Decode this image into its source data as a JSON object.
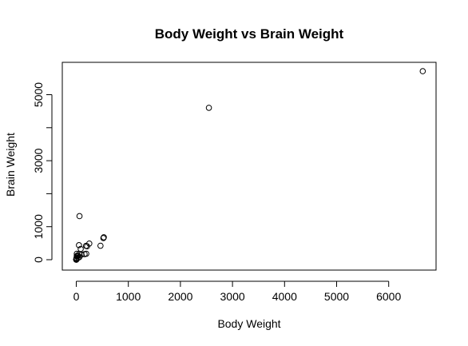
{
  "chart_data": {
    "type": "scatter",
    "title": "Body Weight vs Brain Weight",
    "xlabel": "Body Weight",
    "ylabel": "Brain Weight",
    "xlim": [
      0,
      6700
    ],
    "ylim": [
      0,
      5700
    ],
    "x_ticks": [
      0,
      1000,
      2000,
      3000,
      4000,
      5000,
      6000
    ],
    "x_tick_labels": [
      "0",
      "1000",
      "2000",
      "3000",
      "4000",
      "5000",
      "6000"
    ],
    "y_ticks": [
      0,
      1000,
      3000,
      5000
    ],
    "y_tick_labels": [
      "0",
      "1000",
      "3000",
      "5000"
    ],
    "grid": false,
    "marker": "open-circle",
    "points": [
      {
        "x": 6654,
        "y": 5712
      },
      {
        "x": 2547,
        "y": 4603
      },
      {
        "x": 62,
        "y": 1320
      },
      {
        "x": 521,
        "y": 655
      },
      {
        "x": 529,
        "y": 680
      },
      {
        "x": 465,
        "y": 423
      },
      {
        "x": 250,
        "y": 490
      },
      {
        "x": 207,
        "y": 406
      },
      {
        "x": 187,
        "y": 419
      },
      {
        "x": 192,
        "y": 180
      },
      {
        "x": 160,
        "y": 169
      },
      {
        "x": 100,
        "y": 157
      },
      {
        "x": 85,
        "y": 325
      },
      {
        "x": 60,
        "y": 81
      },
      {
        "x": 55,
        "y": 175
      },
      {
        "x": 52,
        "y": 440
      },
      {
        "x": 36,
        "y": 119
      },
      {
        "x": 27,
        "y": 115
      },
      {
        "x": 10,
        "y": 115
      },
      {
        "x": 10,
        "y": 180
      },
      {
        "x": 6,
        "y": 50
      },
      {
        "x": 4,
        "y": 25
      },
      {
        "x": 3,
        "y": 25
      },
      {
        "x": 3,
        "y": 44
      },
      {
        "x": 2,
        "y": 12
      },
      {
        "x": 1,
        "y": 6
      },
      {
        "x": 1,
        "y": 11
      },
      {
        "x": 0.5,
        "y": 3
      },
      {
        "x": 0.1,
        "y": 1
      },
      {
        "x": 0.3,
        "y": 2
      },
      {
        "x": 35,
        "y": 56
      },
      {
        "x": 14,
        "y": 98
      },
      {
        "x": 1.4,
        "y": 12.5
      },
      {
        "x": 4.2,
        "y": 39.2
      }
    ]
  }
}
